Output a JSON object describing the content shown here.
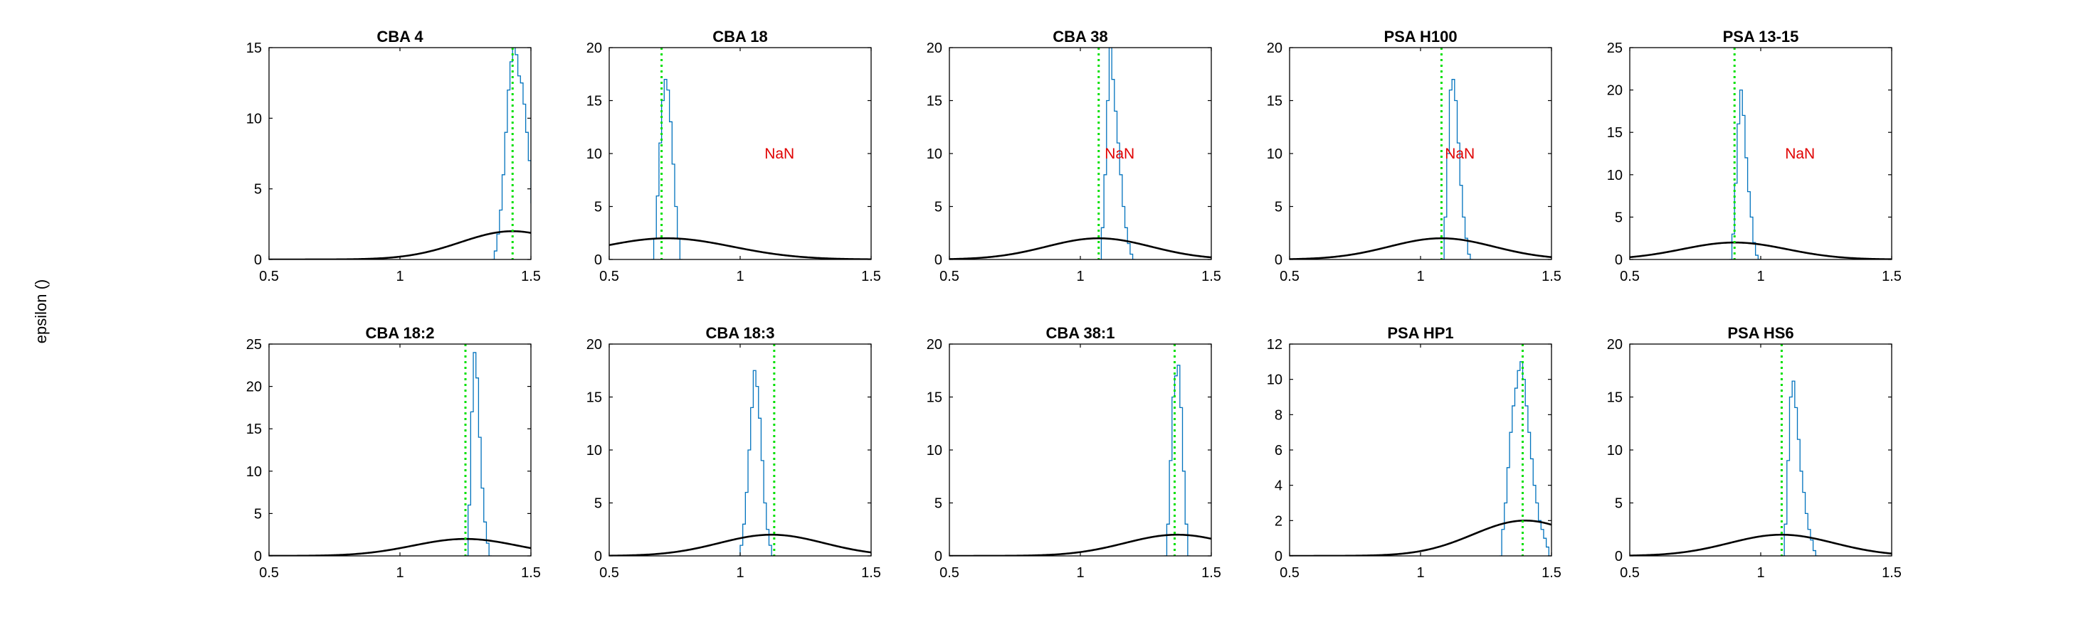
{
  "figure": {
    "ylabel": "epsilon ()"
  },
  "chart_data": [
    {
      "type": "histogram",
      "title": "CBA 4",
      "xlim": [
        0.5,
        1.5
      ],
      "ylim": [
        0,
        15
      ],
      "xticks": [
        0.5,
        1,
        1.5
      ],
      "yticks": [
        0,
        5,
        10,
        15
      ],
      "xticklabels": [
        "0.5",
        "1",
        "1.5"
      ],
      "vline": 1.43,
      "annotation": null,
      "gauss": {
        "mu": 1.43,
        "sigma": 0.2,
        "peak": 2
      },
      "hist": [
        [
          1.35,
          0.0
        ],
        [
          1.36,
          0.6
        ],
        [
          1.37,
          1.8
        ],
        [
          1.38,
          3.5
        ],
        [
          1.39,
          6.0
        ],
        [
          1.4,
          9.0
        ],
        [
          1.41,
          12.0
        ],
        [
          1.42,
          14.0
        ],
        [
          1.43,
          15.0
        ],
        [
          1.44,
          14.5
        ],
        [
          1.45,
          13.0
        ],
        [
          1.46,
          12.5
        ],
        [
          1.47,
          11.0
        ],
        [
          1.48,
          9.0
        ],
        [
          1.49,
          7.0
        ],
        [
          1.5,
          4.0
        ]
      ]
    },
    {
      "type": "histogram",
      "title": "CBA 18",
      "xlim": [
        0.5,
        1.5
      ],
      "ylim": [
        0,
        20
      ],
      "xticks": [
        0.5,
        1,
        1.5
      ],
      "yticks": [
        0,
        5,
        10,
        15,
        20
      ],
      "xticklabels": [
        "0.5",
        "1",
        "1.5"
      ],
      "vline": 0.7,
      "annotation": "NaN",
      "gauss": {
        "mu": 0.72,
        "sigma": 0.25,
        "peak": 2
      },
      "hist": [
        [
          0.66,
          0.0
        ],
        [
          0.67,
          2.0
        ],
        [
          0.68,
          6.0
        ],
        [
          0.69,
          11.0
        ],
        [
          0.7,
          15.0
        ],
        [
          0.71,
          17.0
        ],
        [
          0.72,
          16.0
        ],
        [
          0.73,
          13.0
        ],
        [
          0.74,
          9.0
        ],
        [
          0.75,
          5.0
        ],
        [
          0.76,
          2.0
        ],
        [
          0.77,
          0.0
        ]
      ]
    },
    {
      "type": "histogram",
      "title": "CBA 38",
      "xlim": [
        0.5,
        1.5
      ],
      "ylim": [
        0,
        20
      ],
      "xticks": [
        0.5,
        1,
        1.5
      ],
      "yticks": [
        0,
        5,
        10,
        15,
        20
      ],
      "xticklabels": [
        "0.5",
        "1",
        "1.5"
      ],
      "vline": 1.07,
      "annotation": "NaN",
      "gauss": {
        "mu": 1.07,
        "sigma": 0.2,
        "peak": 2
      },
      "hist": [
        [
          1.07,
          0.0
        ],
        [
          1.08,
          3.0
        ],
        [
          1.09,
          8.0
        ],
        [
          1.1,
          15.0
        ],
        [
          1.11,
          20.0
        ],
        [
          1.12,
          17.0
        ],
        [
          1.13,
          14.0
        ],
        [
          1.14,
          11.0
        ],
        [
          1.15,
          8.0
        ],
        [
          1.16,
          5.0
        ],
        [
          1.17,
          3.0
        ],
        [
          1.18,
          1.5
        ],
        [
          1.19,
          0.5
        ],
        [
          1.2,
          0.0
        ]
      ]
    },
    {
      "type": "histogram",
      "title": "PSA H100",
      "xlim": [
        0.5,
        1.5
      ],
      "ylim": [
        0,
        20
      ],
      "xticks": [
        0.5,
        1,
        1.5
      ],
      "yticks": [
        0,
        5,
        10,
        15,
        20
      ],
      "xticklabels": [
        "0.5",
        "1",
        "1.5"
      ],
      "vline": 1.08,
      "annotation": "NaN",
      "gauss": {
        "mu": 1.08,
        "sigma": 0.2,
        "peak": 2
      },
      "hist": [
        [
          1.08,
          0.0
        ],
        [
          1.09,
          4.0
        ],
        [
          1.1,
          10.0
        ],
        [
          1.11,
          16.0
        ],
        [
          1.12,
          17.0
        ],
        [
          1.13,
          15.0
        ],
        [
          1.14,
          11.0
        ],
        [
          1.15,
          7.0
        ],
        [
          1.16,
          4.0
        ],
        [
          1.17,
          2.0
        ],
        [
          1.18,
          0.5
        ],
        [
          1.19,
          0.0
        ]
      ]
    },
    {
      "type": "histogram",
      "title": "PSA 13-15",
      "xlim": [
        0.5,
        1.5
      ],
      "ylim": [
        0,
        25
      ],
      "xticks": [
        0.5,
        1,
        1.5
      ],
      "yticks": [
        0,
        5,
        10,
        15,
        20,
        25
      ],
      "xticklabels": [
        "0.5",
        "1",
        "1.5"
      ],
      "vline": 0.9,
      "annotation": "NaN",
      "gauss": {
        "mu": 0.9,
        "sigma": 0.2,
        "peak": 2
      },
      "hist": [
        [
          0.88,
          0.0
        ],
        [
          0.89,
          3.0
        ],
        [
          0.9,
          9.0
        ],
        [
          0.91,
          16.0
        ],
        [
          0.92,
          20.0
        ],
        [
          0.93,
          17.0
        ],
        [
          0.94,
          12.0
        ],
        [
          0.95,
          8.0
        ],
        [
          0.96,
          5.0
        ],
        [
          0.97,
          2.0
        ],
        [
          0.98,
          0.5
        ],
        [
          0.99,
          0.0
        ]
      ]
    },
    {
      "type": "histogram",
      "title": "CBA 18:2",
      "xlim": [
        0.5,
        1.5
      ],
      "ylim": [
        0,
        25
      ],
      "xticks": [
        0.5,
        1,
        1.5
      ],
      "yticks": [
        0,
        5,
        10,
        15,
        20,
        25
      ],
      "xticklabels": [
        "0.5",
        "1",
        "1.5"
      ],
      "vline": 1.25,
      "annotation": null,
      "gauss": {
        "mu": 1.25,
        "sigma": 0.2,
        "peak": 2
      },
      "hist": [
        [
          1.25,
          0.0
        ],
        [
          1.26,
          6.0
        ],
        [
          1.27,
          17.0
        ],
        [
          1.28,
          24.0
        ],
        [
          1.29,
          21.0
        ],
        [
          1.3,
          14.0
        ],
        [
          1.31,
          8.0
        ],
        [
          1.32,
          4.0
        ],
        [
          1.33,
          1.5
        ],
        [
          1.34,
          0.0
        ]
      ]
    },
    {
      "type": "histogram",
      "title": "CBA 18:3",
      "xlim": [
        0.5,
        1.5
      ],
      "ylim": [
        0,
        20
      ],
      "xticks": [
        0.5,
        1,
        1.5
      ],
      "yticks": [
        0,
        5,
        10,
        15,
        20
      ],
      "xticklabels": [
        "0.5",
        "1",
        "1.5"
      ],
      "vline": 1.13,
      "annotation": null,
      "gauss": {
        "mu": 1.12,
        "sigma": 0.2,
        "peak": 2
      },
      "hist": [
        [
          0.99,
          0.0
        ],
        [
          1.0,
          1.0
        ],
        [
          1.01,
          3.0
        ],
        [
          1.02,
          6.0
        ],
        [
          1.03,
          10.0
        ],
        [
          1.04,
          14.0
        ],
        [
          1.05,
          17.5
        ],
        [
          1.06,
          16.0
        ],
        [
          1.07,
          13.0
        ],
        [
          1.08,
          9.0
        ],
        [
          1.09,
          5.0
        ],
        [
          1.1,
          2.5
        ],
        [
          1.11,
          1.0
        ],
        [
          1.12,
          0.0
        ]
      ]
    },
    {
      "type": "histogram",
      "title": "CBA 38:1",
      "xlim": [
        0.5,
        1.5
      ],
      "ylim": [
        0,
        20
      ],
      "xticks": [
        0.5,
        1,
        1.5
      ],
      "yticks": [
        0,
        5,
        10,
        15,
        20
      ],
      "xticklabels": [
        "0.5",
        "1",
        "1.5"
      ],
      "vline": 1.36,
      "annotation": null,
      "gauss": {
        "mu": 1.37,
        "sigma": 0.2,
        "peak": 2
      },
      "hist": [
        [
          1.32,
          0.0
        ],
        [
          1.33,
          3.0
        ],
        [
          1.34,
          9.0
        ],
        [
          1.35,
          15.0
        ],
        [
          1.36,
          17.0
        ],
        [
          1.37,
          18.0
        ],
        [
          1.38,
          14.0
        ],
        [
          1.39,
          8.0
        ],
        [
          1.4,
          3.0
        ],
        [
          1.41,
          0.0
        ]
      ]
    },
    {
      "type": "histogram",
      "title": "PSA HP1",
      "xlim": [
        0.5,
        1.5
      ],
      "ylim": [
        0,
        12
      ],
      "xticks": [
        0.5,
        1,
        1.5
      ],
      "yticks": [
        0,
        2,
        4,
        6,
        8,
        10,
        12
      ],
      "xticklabels": [
        "0.5",
        "1",
        "1.5"
      ],
      "vline": 1.39,
      "annotation": null,
      "gauss": {
        "mu": 1.4,
        "sigma": 0.2,
        "peak": 2
      },
      "hist": [
        [
          1.3,
          0.0
        ],
        [
          1.31,
          1.5
        ],
        [
          1.32,
          3.0
        ],
        [
          1.33,
          5.0
        ],
        [
          1.34,
          7.0
        ],
        [
          1.35,
          8.5
        ],
        [
          1.36,
          9.5
        ],
        [
          1.37,
          10.5
        ],
        [
          1.38,
          11.0
        ],
        [
          1.39,
          10.0
        ],
        [
          1.4,
          8.5
        ],
        [
          1.41,
          7.0
        ],
        [
          1.42,
          5.5
        ],
        [
          1.43,
          4.0
        ],
        [
          1.44,
          3.0
        ],
        [
          1.45,
          2.0
        ],
        [
          1.46,
          1.5
        ],
        [
          1.47,
          1.0
        ],
        [
          1.48,
          0.5
        ],
        [
          1.49,
          0.0
        ]
      ]
    },
    {
      "type": "histogram",
      "title": "PSA HS6",
      "xlim": [
        0.5,
        1.5
      ],
      "ylim": [
        0,
        20
      ],
      "xticks": [
        0.5,
        1,
        1.5
      ],
      "yticks": [
        0,
        5,
        10,
        15,
        20
      ],
      "xticklabels": [
        "0.5",
        "1",
        "1.5"
      ],
      "vline": 1.08,
      "annotation": null,
      "gauss": {
        "mu": 1.08,
        "sigma": 0.2,
        "peak": 2
      },
      "hist": [
        [
          1.08,
          0.0
        ],
        [
          1.09,
          3.0
        ],
        [
          1.1,
          9.0
        ],
        [
          1.11,
          15.0
        ],
        [
          1.12,
          16.5
        ],
        [
          1.13,
          14.0
        ],
        [
          1.14,
          11.0
        ],
        [
          1.15,
          8.0
        ],
        [
          1.16,
          6.0
        ],
        [
          1.17,
          4.0
        ],
        [
          1.18,
          2.5
        ],
        [
          1.19,
          1.5
        ],
        [
          1.2,
          0.5
        ],
        [
          1.21,
          0.0
        ]
      ]
    }
  ]
}
